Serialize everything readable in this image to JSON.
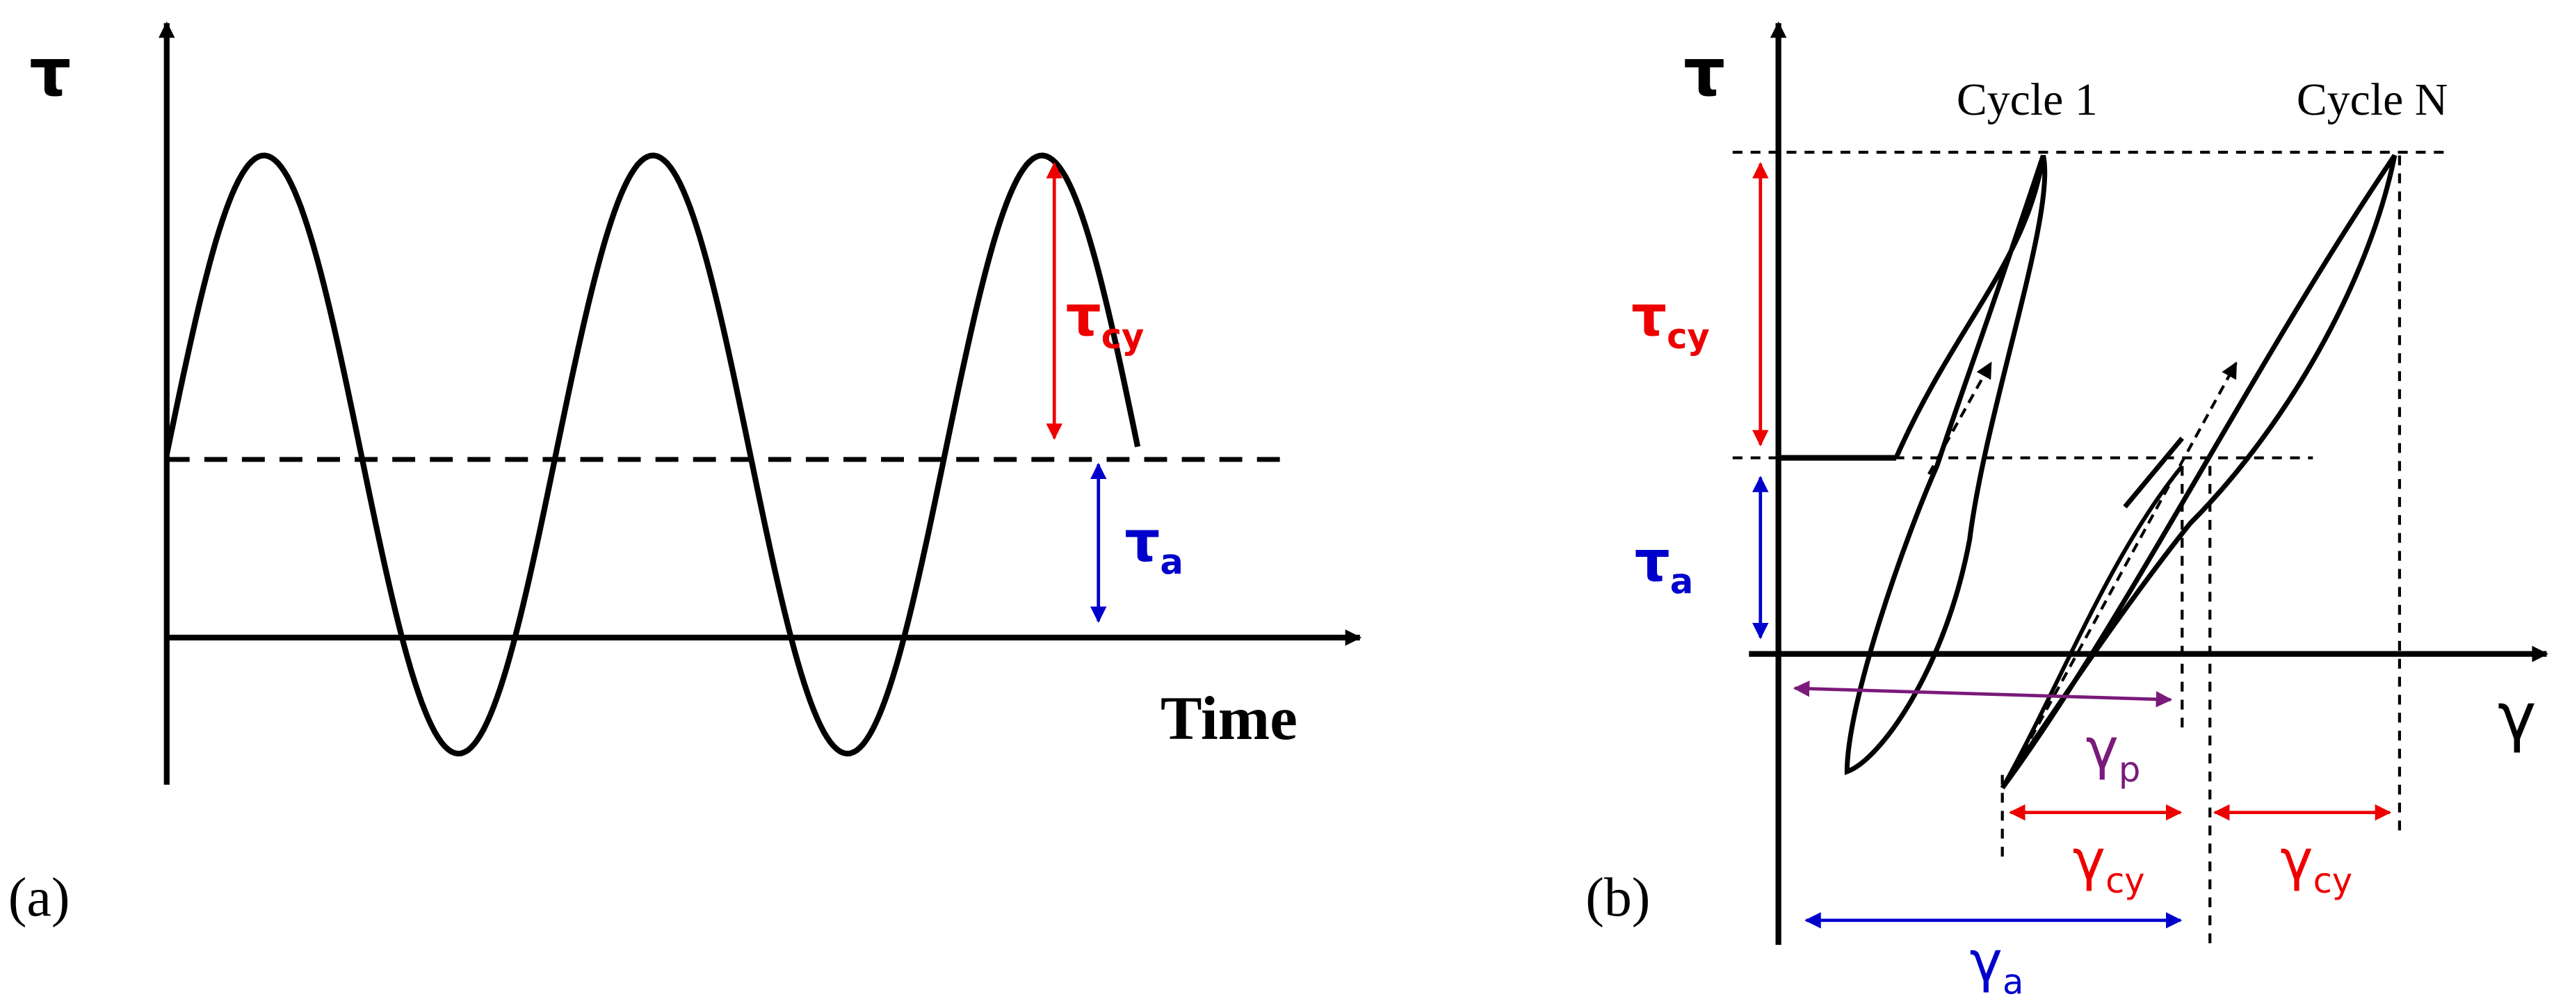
{
  "panel_a": {
    "label": "(a)",
    "y_axis_label": "τ",
    "x_axis_label": "Time",
    "tau_cy": {
      "symbol": "τ",
      "subscript": "cy"
    },
    "tau_a": {
      "symbol": "τ",
      "subscript": "a"
    }
  },
  "panel_b": {
    "label": "(b)",
    "y_axis_label": "τ",
    "x_axis_label": "γ",
    "cycle_first": "Cycle 1",
    "cycle_last": "Cycle N",
    "tau_cy": {
      "symbol": "τ",
      "subscript": "cy"
    },
    "tau_a": {
      "symbol": "τ",
      "subscript": "a"
    },
    "gamma_p": {
      "symbol": "γ",
      "subscript": "p"
    },
    "gamma_cy_1": {
      "symbol": "γ",
      "subscript": "cy"
    },
    "gamma_cy_2": {
      "symbol": "γ",
      "subscript": "cy"
    },
    "gamma_a": {
      "symbol": "γ",
      "subscript": "a"
    }
  }
}
